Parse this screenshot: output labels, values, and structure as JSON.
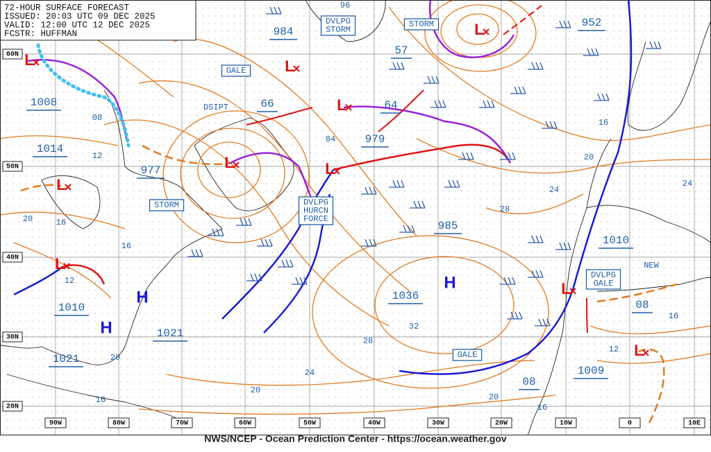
{
  "header": {
    "lines": [
      "72-HOUR SURFACE FORECAST",
      "ISSUED: 20:03 UTC 09 DEC 2025",
      "VALID:  12:00 UTC 12 DEC 2025",
      "FCSTR:  HUFFMAN"
    ]
  },
  "lat_labels": [
    "60N",
    "50N",
    "40N",
    "30N",
    "20N"
  ],
  "lon_labels": [
    "90W",
    "80W",
    "70W",
    "60W",
    "50W",
    "40W",
    "30W",
    "20W",
    "10W",
    "0",
    "10E"
  ],
  "pressures": [
    "984",
    "952",
    "57",
    "66",
    "64",
    "979",
    "977",
    "985",
    "1036",
    "1008",
    "1014",
    "1010",
    "1021",
    "1021",
    "1010",
    "08",
    "08",
    "1009"
  ],
  "warnings": [
    [
      "DVLPG",
      "STORM"
    ],
    [
      "STORM"
    ],
    [
      "GALE"
    ],
    [
      "STORM"
    ],
    [
      "DVLPG",
      "HURCN",
      "FORCE"
    ],
    [
      "DVLPG",
      "GALE"
    ],
    [
      "GALE"
    ]
  ],
  "notes": [
    "DSIPT",
    "NEW"
  ],
  "isobar_labels": [
    "96",
    "08",
    "12",
    "20",
    "16",
    "16",
    "12",
    "84",
    "28",
    "24",
    "20",
    "16",
    "24",
    "32",
    "28",
    "24",
    "20",
    "20",
    "16",
    "20",
    "16",
    "12",
    "16"
  ],
  "highs": [
    "H",
    "H",
    "H"
  ],
  "lows": [
    "L",
    "L",
    "L",
    "L",
    "L",
    "L",
    "L",
    "L",
    "L",
    "L"
  ],
  "footer": "NWS/NCEP - Ocean Prediction Center - https://ocean.weather.gov"
}
